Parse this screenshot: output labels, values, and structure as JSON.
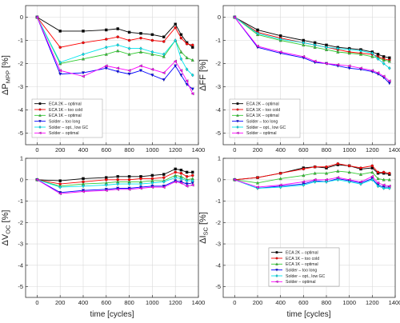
{
  "xlabel": "time [cycles]",
  "chart_data": [
    {
      "type": "line",
      "panel": "top-left",
      "ylabel_main": "ΔP",
      "ylabel_sub": "MPP",
      "ylabel_unit": " [%]",
      "xlim": [
        -100,
        1400
      ],
      "ylim": [
        -5.5,
        0.5
      ],
      "x_ticks": [
        0,
        200,
        400,
        600,
        800,
        1000,
        1200,
        1400
      ],
      "y_ticks": [
        0,
        -1,
        -2,
        -3,
        -4,
        -5
      ],
      "grid": true,
      "legend": "lower-left",
      "x": [
        0,
        200,
        400,
        600,
        700,
        800,
        900,
        1000,
        1100,
        1200,
        1250,
        1300,
        1350
      ],
      "series": [
        {
          "name": "ECA 2K – optimal",
          "color": "#000000",
          "marker": "square",
          "values": [
            0,
            -0.6,
            -0.6,
            -0.55,
            -0.5,
            -0.65,
            -0.7,
            -0.75,
            -0.85,
            -0.3,
            -0.75,
            -1.1,
            -1.3
          ]
        },
        {
          "name": "ECA 1K – too cold",
          "color": "#ff0000",
          "marker": "circle",
          "values": [
            0,
            -1.3,
            -1.1,
            -0.95,
            -0.85,
            -1.0,
            -0.9,
            -1.0,
            -1.05,
            -0.45,
            -0.9,
            -1.15,
            -1.2
          ]
        },
        {
          "name": "ECA 1K – optimal",
          "color": "#33cc33",
          "marker": "triangle-up",
          "values": [
            0,
            -2.0,
            -1.8,
            -1.6,
            -1.45,
            -1.6,
            -1.5,
            -1.6,
            -1.7,
            -1.0,
            -1.5,
            -1.75,
            -1.85
          ]
        },
        {
          "name": "Solder – too long",
          "color": "#0000ff",
          "marker": "triangle-down",
          "values": [
            0,
            -2.45,
            -2.4,
            -2.2,
            -2.35,
            -2.45,
            -2.3,
            -2.5,
            -2.7,
            -2.1,
            -2.5,
            -2.9,
            -3.1
          ]
        },
        {
          "name": "Solder – opt., low GC",
          "color": "#00e5ee",
          "marker": "diamond",
          "values": [
            0,
            -1.95,
            -1.6,
            -1.3,
            -1.2,
            -1.35,
            -1.35,
            -1.5,
            -1.6,
            -1.0,
            -1.8,
            -2.25,
            -2.5
          ]
        },
        {
          "name": "Solder – optimal",
          "color": "#ff00ff",
          "marker": "triangle-left",
          "values": [
            0,
            -2.3,
            -2.55,
            -2.1,
            -2.2,
            -2.3,
            -2.1,
            -2.25,
            -2.4,
            -1.9,
            -2.3,
            -2.75,
            -3.3
          ]
        }
      ]
    },
    {
      "type": "line",
      "panel": "top-right",
      "ylabel_main": "ΔFF",
      "ylabel_sub": "",
      "ylabel_unit": " [%]",
      "xlim": [
        -100,
        1400
      ],
      "ylim": [
        -5.5,
        0.5
      ],
      "x_ticks": [
        0,
        200,
        400,
        600,
        800,
        1000,
        1200,
        1400
      ],
      "y_ticks": [
        0,
        -1,
        -2,
        -3,
        -4,
        -5
      ],
      "grid": true,
      "legend": "lower-left",
      "x": [
        0,
        200,
        400,
        600,
        700,
        800,
        900,
        1000,
        1100,
        1200,
        1250,
        1300,
        1350
      ],
      "series": [
        {
          "name": "ECA 2K – optimal",
          "color": "#000000",
          "marker": "square",
          "values": [
            0,
            -0.55,
            -0.8,
            -1.0,
            -1.1,
            -1.2,
            -1.3,
            -1.35,
            -1.4,
            -1.5,
            -1.6,
            -1.7,
            -1.75
          ]
        },
        {
          "name": "ECA 1K – too cold",
          "color": "#ff0000",
          "marker": "circle",
          "values": [
            0,
            -0.65,
            -0.9,
            -1.1,
            -1.2,
            -1.3,
            -1.4,
            -1.5,
            -1.55,
            -1.6,
            -1.7,
            -1.8,
            -1.85
          ]
        },
        {
          "name": "ECA 1K – optimal",
          "color": "#33cc33",
          "marker": "triangle-up",
          "values": [
            0,
            -0.75,
            -1.0,
            -1.2,
            -1.3,
            -1.4,
            -1.5,
            -1.55,
            -1.6,
            -1.7,
            -1.75,
            -1.85,
            -1.9
          ]
        },
        {
          "name": "Solder – too long",
          "color": "#0000ff",
          "marker": "triangle-down",
          "values": [
            0,
            -1.3,
            -1.55,
            -1.75,
            -1.95,
            -2.0,
            -2.1,
            -2.2,
            -2.25,
            -2.35,
            -2.45,
            -2.6,
            -2.85
          ]
        },
        {
          "name": "Solder – opt., low GC",
          "color": "#00e5ee",
          "marker": "diamond",
          "values": [
            0,
            -0.7,
            -0.95,
            -1.1,
            -1.2,
            -1.3,
            -1.35,
            -1.4,
            -1.45,
            -1.55,
            -1.8,
            -2.0,
            -2.2
          ]
        },
        {
          "name": "Solder – optimal",
          "color": "#ff00ff",
          "marker": "triangle-left",
          "values": [
            0,
            -1.25,
            -1.5,
            -1.7,
            -1.9,
            -2.0,
            -2.05,
            -2.1,
            -2.2,
            -2.3,
            -2.4,
            -2.55,
            -2.75
          ]
        }
      ]
    },
    {
      "type": "line",
      "panel": "bottom-left",
      "ylabel_main": "ΔV",
      "ylabel_sub": "OC",
      "ylabel_unit": " [%]",
      "xlim": [
        -100,
        1400
      ],
      "ylim": [
        -5.5,
        1.0
      ],
      "x_ticks": [
        0,
        200,
        400,
        600,
        800,
        1000,
        1200,
        1400
      ],
      "y_ticks": [
        1,
        0,
        -1,
        -2,
        -3,
        -4,
        -5
      ],
      "grid": true,
      "legend": "lower-right",
      "x": [
        0,
        200,
        400,
        600,
        700,
        800,
        900,
        1000,
        1100,
        1200,
        1250,
        1300,
        1350
      ],
      "series": [
        {
          "name": "ECA 2K – optimal",
          "color": "#000000",
          "marker": "square",
          "values": [
            0,
            -0.05,
            0.05,
            0.1,
            0.15,
            0.15,
            0.15,
            0.2,
            0.25,
            0.5,
            0.45,
            0.35,
            0.35
          ]
        },
        {
          "name": "ECA 1K – too cold",
          "color": "#ff0000",
          "marker": "circle",
          "values": [
            0,
            -0.2,
            -0.1,
            0.0,
            0.0,
            0.0,
            0.05,
            0.05,
            0.1,
            0.35,
            0.3,
            0.15,
            0.2
          ]
        },
        {
          "name": "ECA 1K – optimal",
          "color": "#33cc33",
          "marker": "triangle-up",
          "values": [
            0,
            -0.3,
            -0.2,
            -0.15,
            -0.1,
            -0.1,
            -0.1,
            -0.05,
            -0.05,
            0.2,
            0.15,
            0.0,
            0.05
          ]
        },
        {
          "name": "Solder – too long",
          "color": "#0000ff",
          "marker": "triangle-down",
          "values": [
            0,
            -0.6,
            -0.5,
            -0.45,
            -0.4,
            -0.4,
            -0.35,
            -0.3,
            -0.3,
            -0.05,
            -0.1,
            -0.2,
            -0.15
          ]
        },
        {
          "name": "Solder – opt., low GC",
          "color": "#00e5ee",
          "marker": "diamond",
          "values": [
            0,
            -0.35,
            -0.3,
            -0.25,
            -0.2,
            -0.2,
            -0.2,
            -0.15,
            -0.1,
            0.1,
            0.05,
            -0.05,
            -0.05
          ]
        },
        {
          "name": "Solder – optimal",
          "color": "#ff00ff",
          "marker": "triangle-left",
          "values": [
            0,
            -0.65,
            -0.55,
            -0.5,
            -0.45,
            -0.45,
            -0.4,
            -0.35,
            -0.35,
            -0.1,
            -0.15,
            -0.3,
            -0.25
          ]
        }
      ]
    },
    {
      "type": "line",
      "panel": "bottom-right",
      "ylabel_main": "ΔI",
      "ylabel_sub": "SC",
      "ylabel_unit": " [%]",
      "xlim": [
        -100,
        1400
      ],
      "ylim": [
        -5.5,
        1.0
      ],
      "x_ticks": [
        0,
        200,
        400,
        600,
        800,
        1000,
        1200,
        1400
      ],
      "y_ticks": [
        1,
        0,
        -1,
        -2,
        -3,
        -4,
        -5
      ],
      "grid": true,
      "legend": "lower-right",
      "x": [
        0,
        200,
        400,
        600,
        700,
        800,
        900,
        1000,
        1100,
        1200,
        1250,
        1300,
        1350
      ],
      "series": [
        {
          "name": "ECA 2K – optimal",
          "color": "#000000",
          "marker": "square",
          "values": [
            0,
            0.1,
            0.3,
            0.55,
            0.6,
            0.55,
            0.7,
            0.65,
            0.5,
            0.55,
            0.3,
            0.3,
            0.25
          ]
        },
        {
          "name": "ECA 1K – too cold",
          "color": "#ff0000",
          "marker": "circle",
          "values": [
            0,
            0.1,
            0.3,
            0.5,
            0.6,
            0.6,
            0.75,
            0.65,
            0.55,
            0.65,
            0.35,
            0.35,
            0.3
          ]
        },
        {
          "name": "ECA 1K – optimal",
          "color": "#33cc33",
          "marker": "triangle-up",
          "values": [
            0,
            -0.15,
            0.05,
            0.2,
            0.3,
            0.3,
            0.4,
            0.35,
            0.25,
            0.35,
            0.05,
            0.0,
            0.0
          ]
        },
        {
          "name": "Solder – too long",
          "color": "#0000ff",
          "marker": "triangle-down",
          "values": [
            0,
            -0.4,
            -0.3,
            -0.2,
            -0.05,
            -0.1,
            0.05,
            -0.05,
            -0.15,
            0.05,
            -0.25,
            -0.35,
            -0.35
          ]
        },
        {
          "name": "Solder – opt., low GC",
          "color": "#00e5ee",
          "marker": "diamond",
          "values": [
            0,
            -0.4,
            -0.35,
            -0.25,
            -0.1,
            -0.1,
            0.0,
            -0.1,
            -0.2,
            0.0,
            -0.3,
            -0.4,
            -0.4
          ]
        },
        {
          "name": "Solder – optimal",
          "color": "#ff00ff",
          "marker": "triangle-left",
          "values": [
            0,
            -0.35,
            -0.25,
            -0.1,
            0.0,
            0.0,
            0.1,
            0.0,
            -0.1,
            0.15,
            -0.15,
            -0.25,
            -0.3
          ]
        }
      ]
    }
  ]
}
